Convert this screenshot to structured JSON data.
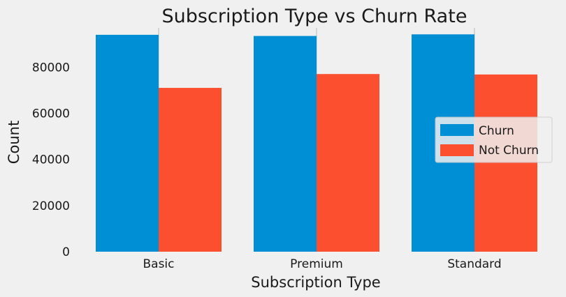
{
  "chart_data": {
    "type": "bar",
    "title": "Subscription Type vs Churn Rate",
    "xlabel": "Subscription Type",
    "ylabel": "Count",
    "categories": [
      "Basic",
      "Premium",
      "Standard"
    ],
    "series": [
      {
        "name": "Churn",
        "color": "#008fd5",
        "values": [
          94000,
          93500,
          94200
        ]
      },
      {
        "name": "Not Churn",
        "color": "#fc4f30",
        "values": [
          71000,
          77000,
          76800
        ]
      }
    ],
    "ylim": [
      0,
      97000
    ],
    "yticks": [
      0,
      20000,
      40000,
      60000,
      80000
    ],
    "grid": true,
    "legend_position": "center-right"
  }
}
